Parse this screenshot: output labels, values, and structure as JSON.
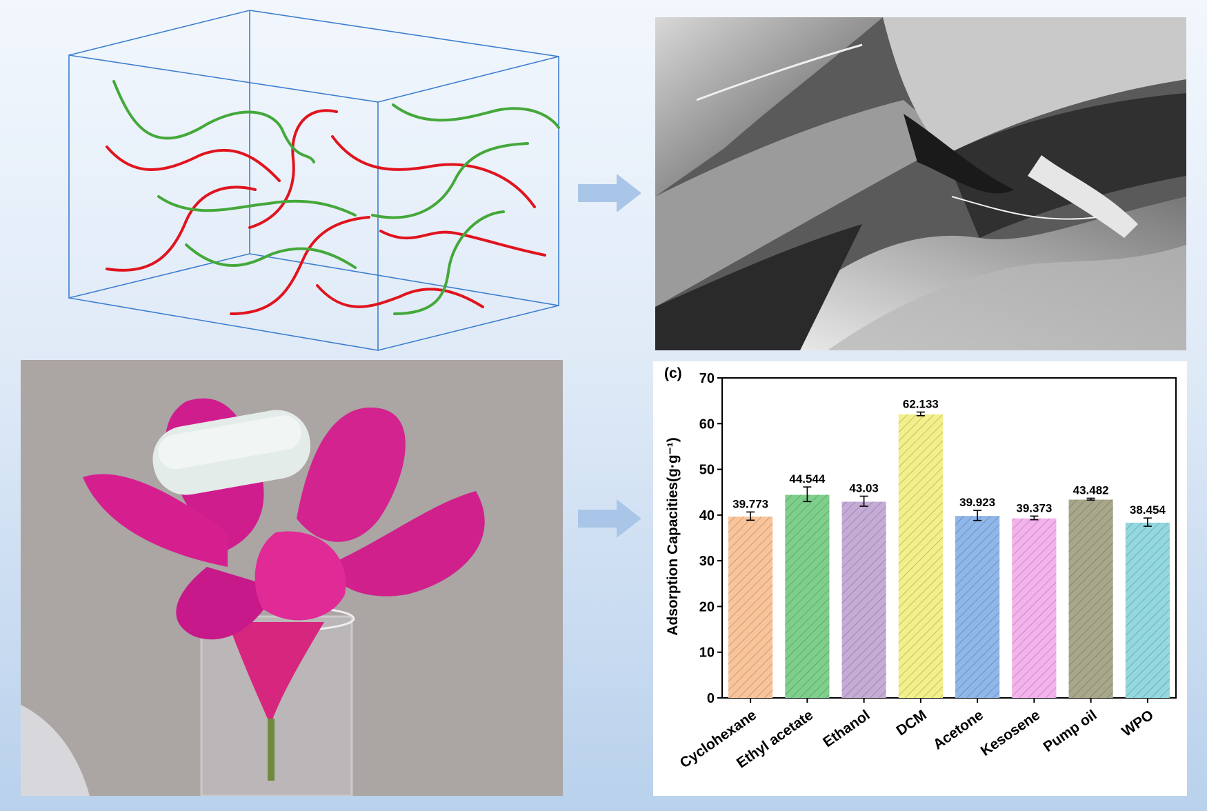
{
  "chart_data": {
    "type": "bar",
    "panel_label": "(c)",
    "ylabel": "Adsorption Capacities(g·g⁻¹)",
    "xlabel": "",
    "ylim": [
      0,
      70
    ],
    "yticks": [
      0,
      10,
      20,
      30,
      40,
      50,
      60,
      70
    ],
    "categories": [
      "Cyclohexane",
      "Ethyl acetate",
      "Ethanol",
      "DCM",
      "Acetone",
      "Kesosene",
      "Pump oil",
      "WPO"
    ],
    "values": [
      39.773,
      44.544,
      43.03,
      62.133,
      39.923,
      39.373,
      43.482,
      38.454
    ],
    "value_labels": [
      "39.773",
      "44.544",
      "43.03",
      "62.133",
      "39.923",
      "39.373",
      "43.482",
      "38.454"
    ],
    "errors": [
      0.9,
      1.6,
      1.1,
      0.4,
      1.1,
      0.4,
      0.2,
      0.9
    ],
    "colors": [
      "#f9c49a",
      "#7fcf8c",
      "#c4acd6",
      "#f3ef8a",
      "#8fb7ea",
      "#f4b2ec",
      "#a8a78b",
      "#93d8df"
    ],
    "grid": false,
    "legend": "none"
  },
  "colors": {
    "box_edge": "#3d7ecf",
    "fiber_red": "#e0141e",
    "fiber_green": "#44a83a",
    "arrow": "#a9c6e8",
    "flower": "#d4208f"
  }
}
